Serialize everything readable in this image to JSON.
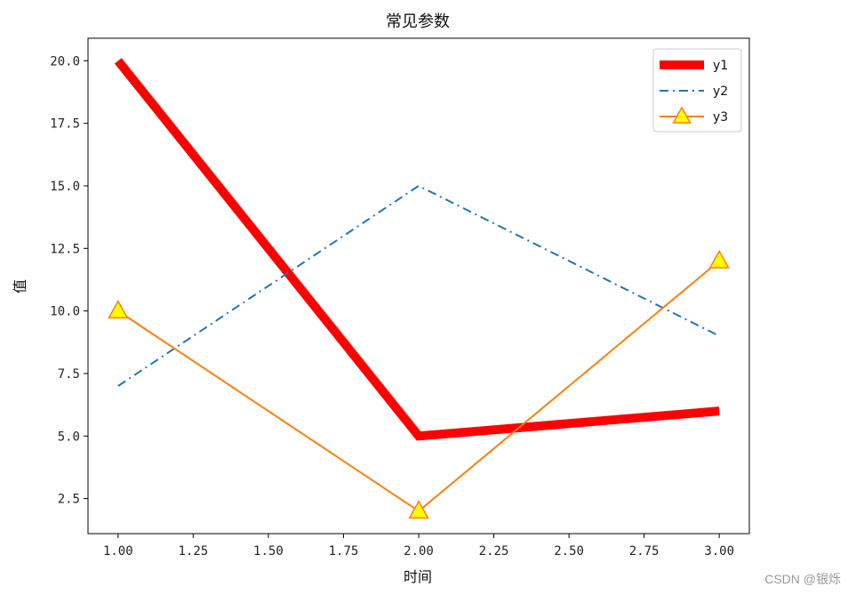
{
  "chart_data": {
    "type": "line",
    "title": "常见参数",
    "xlabel": "时间",
    "ylabel": "值",
    "x": [
      1,
      2,
      3
    ],
    "xlim": [
      0.9,
      3.1
    ],
    "ylim": [
      1.1,
      20.9
    ],
    "xticks": [
      "1.00",
      "1.25",
      "1.50",
      "1.75",
      "2.00",
      "2.25",
      "2.50",
      "2.75",
      "3.00"
    ],
    "yticks": [
      "2.5",
      "5.0",
      "7.5",
      "10.0",
      "12.5",
      "15.0",
      "17.5",
      "20.0"
    ],
    "grid": false,
    "legend_position": "top-right",
    "series": [
      {
        "name": "y1",
        "values": [
          20,
          5,
          6
        ],
        "color": "#ff0000",
        "line_style": "solid",
        "line_width": "thick",
        "marker": "none"
      },
      {
        "name": "y2",
        "values": [
          7,
          15,
          9
        ],
        "color": "#1f77b4",
        "line_style": "dash-dot",
        "line_width": "thin",
        "marker": "none"
      },
      {
        "name": "y3",
        "values": [
          10,
          2,
          12
        ],
        "color": "#ff7f0e",
        "line_style": "solid",
        "line_width": "thin",
        "marker": "triangle",
        "marker_fill": "#ffff00"
      }
    ]
  },
  "watermark": "CSDN @银烁"
}
